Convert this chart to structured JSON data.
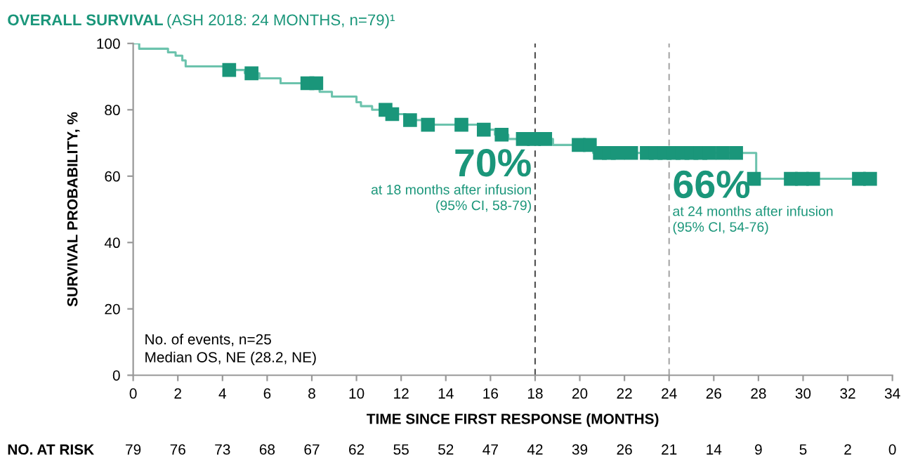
{
  "chart_data": {
    "type": "step",
    "title": "OVERALL SURVIVAL",
    "subtitle": "(ASH 2018: 24 MONTHS, n=79)¹",
    "xlabel": "TIME SINCE FIRST RESPONSE (MONTHS)",
    "ylabel": "SURVIVAL PROBABILITY, %",
    "xlim": [
      0,
      34
    ],
    "xticks": [
      0,
      2,
      4,
      6,
      8,
      10,
      12,
      14,
      16,
      18,
      20,
      22,
      24,
      26,
      28,
      30,
      32,
      34
    ],
    "ylim": [
      0,
      100
    ],
    "yticks": [
      0,
      20,
      40,
      60,
      80,
      100
    ],
    "grid": false,
    "series": [
      {
        "color": "#6cc3ad",
        "x": [
          0,
          0.27,
          1.56,
          1.9,
          2.2,
          2.35,
          4.1,
          5.0,
          5.65,
          6.6,
          8.35,
          8.9,
          10.0,
          10.2,
          10.7,
          11.5,
          12.2,
          13.0,
          15.5,
          16.2,
          16.8,
          18.8,
          20.6,
          27.9,
          33.2
        ],
        "values": [
          100,
          98.4,
          97.3,
          96.3,
          94.9,
          93.1,
          92,
          91,
          89.5,
          88,
          85.4,
          84,
          82.3,
          81.1,
          80,
          78.7,
          76.9,
          75.5,
          74,
          72.5,
          71.2,
          69.4,
          67,
          59.2,
          59.2
        ]
      },
      {
        "type": "scatter",
        "marker": "square",
        "color": "#1a967a",
        "x": [
          4.3,
          5.3,
          7.8,
          8.2,
          11.3,
          11.6,
          12.4,
          13.2,
          14.7,
          15.7,
          16.5,
          17.45,
          17.95,
          18.45,
          19.95,
          20.45,
          20.9,
          21.3,
          21.7,
          22.3,
          23.0,
          23.4,
          23.8,
          24.2,
          24.6,
          25.0,
          25.4,
          25.8,
          26.4,
          27.0,
          27.8,
          29.45,
          29.95,
          30.45,
          32.5,
          33.0
        ],
        "values": [
          92,
          91,
          88,
          88,
          80,
          78.7,
          76.9,
          75.5,
          75.5,
          74,
          72.5,
          71.2,
          71.2,
          71.2,
          69.4,
          69.4,
          67,
          67,
          67,
          67,
          67,
          67,
          67,
          67,
          67,
          67,
          67,
          67,
          67,
          67,
          59.2,
          59.2,
          59.2,
          59.2,
          59.2,
          59.2
        ]
      }
    ],
    "ref_lines": [
      {
        "axis": "x",
        "value": 18,
        "color": "#555555",
        "line_style": "dashed"
      },
      {
        "axis": "x",
        "value": 24,
        "color": "#aaaaaa",
        "line_style": "dashed"
      }
    ],
    "annotations": [
      {
        "text": "70%\nat 18 months after infusion\n(95% CI, 58-79)",
        "x": 18,
        "y": 70
      },
      {
        "text": "66%\nat 24 months after infusion\n(95% CI, 54-76)",
        "x": 24,
        "y": 66
      },
      "No. of events, n=25\nMedian OS, NE (28.2, NE)",
      "NO. AT RISK",
      "79",
      "76",
      "73",
      "68",
      "67",
      "62",
      "55",
      "52",
      "47",
      "42",
      "39",
      "26",
      "21",
      "14",
      "9",
      "5",
      "2",
      "0"
    ]
  }
}
